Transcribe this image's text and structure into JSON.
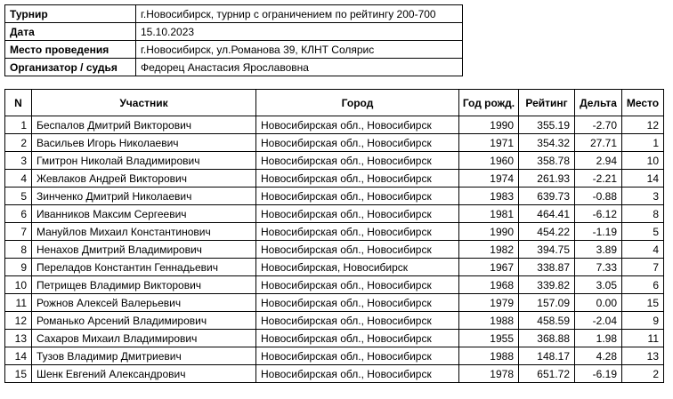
{
  "info": [
    {
      "label": "Турнир",
      "value": "г.Новосибирск, турнир с ограничением по рейтингу 200-700"
    },
    {
      "label": "Дата",
      "value": "15.10.2023"
    },
    {
      "label": "Место проведения",
      "value": "г.Новосибирск, ул.Романова 39, КЛНТ Солярис"
    },
    {
      "label": "Организатор / судья",
      "value": "Федорец Анастасия Ярославовна"
    }
  ],
  "results": {
    "headers": [
      "N",
      "Участник",
      "Город",
      "Год рожд.",
      "Рейтинг",
      "Дельта",
      "Место"
    ],
    "rows": [
      [
        "1",
        "Беспалов Дмитрий Викторович",
        "Новосибирская обл., Новосибирск",
        "1990",
        "355.19",
        "-2.70",
        "12"
      ],
      [
        "2",
        "Васильев Игорь Николаевич",
        "Новосибирская обл., Новосибирск",
        "1971",
        "354.32",
        "27.71",
        "1"
      ],
      [
        "3",
        "Гмитрон Николай Владимирович",
        "Новосибирская обл., Новосибирск",
        "1960",
        "358.78",
        "2.94",
        "10"
      ],
      [
        "4",
        "Жевлаков Андрей Викторович",
        "Новосибирская обл., Новосибирск",
        "1974",
        "261.93",
        "-2.21",
        "14"
      ],
      [
        "5",
        "Зинченко Дмитрий Николаевич",
        "Новосибирская обл., Новосибирск",
        "1983",
        "639.73",
        "-0.88",
        "3"
      ],
      [
        "6",
        "Иванников Максим Сергеевич",
        "Новосибирская обл., Новосибирск",
        "1981",
        "464.41",
        "-6.12",
        "8"
      ],
      [
        "7",
        "Мануйлов Михаил Константинович",
        "Новосибирская обл., Новосибирск",
        "1990",
        "454.22",
        "-1.19",
        "5"
      ],
      [
        "8",
        "Ненахов Дмитрий Владимирович",
        "Новосибирская обл., Новосибирск",
        "1982",
        "394.75",
        "3.89",
        "4"
      ],
      [
        "9",
        "Переладов Константин Геннадьевич",
        "Новосибирская, Новосибирск",
        "1967",
        "338.87",
        "7.33",
        "7"
      ],
      [
        "10",
        "Петрищев Владимир Викторович",
        "Новосибирская обл., Новосибирск",
        "1968",
        "339.82",
        "3.05",
        "6"
      ],
      [
        "11",
        "Рожнов Алексей Валерьевич",
        "Новосибирская обл., Новосибирск",
        "1979",
        "157.09",
        "0.00",
        "15"
      ],
      [
        "12",
        "Романько Арсений Владимирович",
        "Новосибирская обл., Новосибирск",
        "1988",
        "458.59",
        "-2.04",
        "9"
      ],
      [
        "13",
        "Сахаров Михаил Владимирович",
        "Новосибирская обл., Новосибирск",
        "1955",
        "368.88",
        "1.98",
        "11"
      ],
      [
        "14",
        "Тузов Владимир Дмитриевич",
        "Новосибирская обл., Новосибирск",
        "1988",
        "148.17",
        "4.28",
        "13"
      ],
      [
        "15",
        "Шенк Евгений Александрович",
        "Новосибирская обл., Новосибирск",
        "1978",
        "651.72",
        "-6.19",
        "2"
      ]
    ]
  }
}
